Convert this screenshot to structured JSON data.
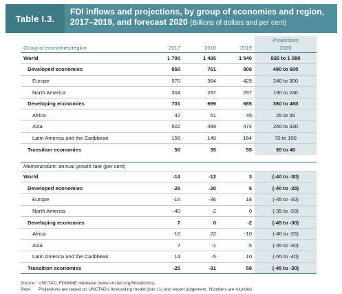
{
  "header": {
    "tag": "Table I.3.",
    "title_line1": "FDI inflows and projections, by group of economies and region,",
    "title_line2": "2017–2019, and forecast 2020",
    "title_sub": "(Billions of dollars and per cent)"
  },
  "columns": {
    "label": "Group of economies/region",
    "y2017": "2017",
    "y2018": "2018",
    "y2019": "2019",
    "projections": "Projections",
    "y2020": "2020"
  },
  "rows": [
    {
      "label": "World",
      "v2017": "1 700",
      "v2018": "1 495",
      "v2019": "1 540",
      "proj": "920 to 1 080"
    },
    {
      "label": "Developed economies",
      "v2017": "950",
      "v2018": "761",
      "v2019": "800",
      "proj": "480 to 600"
    },
    {
      "label": "Europe",
      "v2017": "570",
      "v2018": "364",
      "v2019": "429",
      "proj": "240 to 300"
    },
    {
      "label": "North America",
      "v2017": "304",
      "v2018": "297",
      "v2019": "297",
      "proj": "190 to 240"
    },
    {
      "label": "Developing economies",
      "v2017": "701",
      "v2018": "699",
      "v2019": "685",
      "proj": "380 to 480"
    },
    {
      "label": "Africa",
      "v2017": "42",
      "v2018": "51",
      "v2019": "45",
      "proj": "25 to 35"
    },
    {
      "label": "Asia",
      "v2017": "502",
      "v2018": "499",
      "v2019": "474",
      "proj": "260 to 330"
    },
    {
      "label": "Latin America and the Caribbean",
      "v2017": "156",
      "v2018": "149",
      "v2019": "164",
      "proj": "70 to 100"
    },
    {
      "label": "Transition economies",
      "v2017": "50",
      "v2018": "35",
      "v2019": "55",
      "proj": "30 to 40"
    }
  ],
  "memo": {
    "label_italic": "Memorandum:",
    "label_rest": " annual growth rate (per cent)"
  },
  "growth_rows": [
    {
      "label": "World",
      "v2017": "-14",
      "v2018": "-12",
      "v2019": "3",
      "proj": "(-40 to -30)"
    },
    {
      "label": "Developed economies",
      "v2017": "-25",
      "v2018": "-20",
      "v2019": "5",
      "proj": "(-40 to -25)"
    },
    {
      "label": "Europe",
      "v2017": "-16",
      "v2018": "-36",
      "v2019": "18",
      "proj": "(-45 to -30)"
    },
    {
      "label": "North America",
      "v2017": "-40",
      "v2018": "-2",
      "v2019": "0",
      "proj": "(-35 to -20)"
    },
    {
      "label": "Developing economies",
      "v2017": "7",
      "v2018": "0",
      "v2019": "-2",
      "proj": "(-45 to -30)"
    },
    {
      "label": "Africa",
      "v2017": "-10",
      "v2018": "22",
      "v2019": "-10",
      "proj": "(-40 to -25)"
    },
    {
      "label": "Asia",
      "v2017": "7",
      "v2018": "-1",
      "v2019": "-5",
      "proj": "(-45 to -30)"
    },
    {
      "label": "Latin America and the Caribbean",
      "v2017": "14",
      "v2018": "-5",
      "v2019": "10",
      "proj": "(-55 to -40)"
    },
    {
      "label": "Transition economies",
      "v2017": "-25",
      "v2018": "-31",
      "v2019": "59",
      "proj": "(-45 to -30)"
    }
  ],
  "footnotes": {
    "source_key": "Source:",
    "source_text": "UNCTAD, FDI/MNE database (www.unctad.org/fdistatistics).",
    "note_key": "Note:",
    "note_text": "Projections are based on UNCTAD's forecasting model (box I.1) and expert judgement. Numbers are rounded."
  },
  "colors": {
    "tag_bg": "#3f7a87",
    "title_bg": "#4f8d9a",
    "projection_bg": "#dde7ea"
  }
}
